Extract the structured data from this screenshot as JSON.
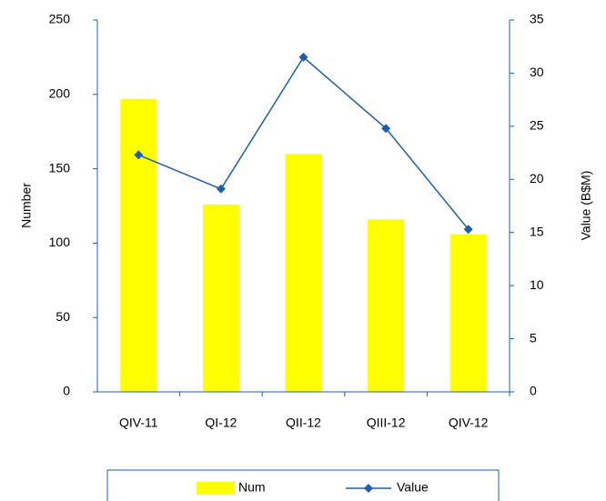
{
  "chart_data": {
    "type": "bar-line",
    "categories": [
      "QIV-11",
      "QI-12",
      "QII-12",
      "QIII-12",
      "QIV-12"
    ],
    "series": [
      {
        "name": "Num",
        "type": "bar",
        "color": "#ffff00",
        "values": [
          197,
          126,
          160,
          116,
          106
        ]
      },
      {
        "name": "Value",
        "type": "line",
        "axis": "y2",
        "color": "#1f5fa8",
        "values": [
          22.3,
          19.1,
          31.5,
          24.8,
          15.3
        ]
      }
    ],
    "ylabel": "Number",
    "y2label": "Value (B$M)",
    "ylim": [
      0,
      250
    ],
    "yticks": [
      0,
      50,
      100,
      150,
      200,
      250
    ],
    "y2lim": [
      0,
      35
    ],
    "y2ticks": [
      0,
      5,
      10,
      15,
      20,
      25,
      30,
      35
    ],
    "legend": "bottom"
  }
}
